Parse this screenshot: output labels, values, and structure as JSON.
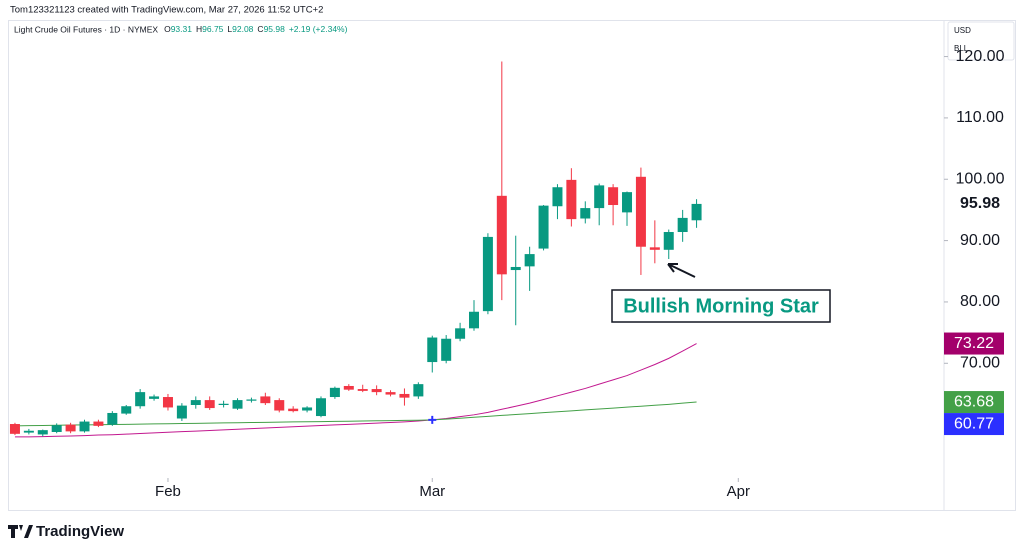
{
  "header": {
    "attribution": "Tom123321123 created with TradingView.com, Mar 27, 2026 11:52 UTC+2",
    "scale_menu": [
      "USD",
      "BLL"
    ]
  },
  "chart_data": {
    "type": "candlestick",
    "title": "Light Crude Oil Futures · 1D · NYMEX",
    "ohlc_letters": [
      "O",
      "H",
      "L",
      "C"
    ],
    "change": "+2.19 (+2.34%)",
    "up_color": "#089981",
    "down_color": "#f23645",
    "open": [
      60.1,
      58.7,
      58.4,
      58.8,
      60.0,
      58.9,
      60.5,
      60.0,
      61.8,
      63.0,
      64.2,
      64.5,
      61.0,
      63.2,
      64.0,
      63.2,
      62.6,
      63.9,
      64.6,
      64.0,
      62.6,
      62.3,
      61.4,
      64.5,
      66.3,
      65.8,
      65.8,
      65.3,
      65.0,
      64.6,
      70.2,
      70.4,
      74.0,
      75.7,
      78.5,
      97.3,
      85.2,
      85.8,
      88.7,
      95.6,
      99.9,
      93.6,
      95.3,
      98.7,
      94.6,
      100.4,
      88.9,
      88.5,
      91.4,
      93.31
    ],
    "high": [
      60.3,
      59.3,
      59.2,
      60.2,
      60.3,
      60.8,
      60.8,
      62.2,
      63.2,
      65.8,
      64.9,
      65.0,
      63.5,
      64.6,
      64.6,
      63.9,
      64.3,
      64.4,
      65.2,
      64.3,
      63.0,
      63.0,
      64.6,
      66.2,
      66.6,
      66.5,
      66.4,
      65.6,
      65.9,
      66.9,
      74.5,
      74.6,
      76.6,
      80.3,
      91.2,
      119.2,
      90.8,
      89.0,
      95.8,
      99.2,
      101.8,
      96.4,
      99.3,
      99.2,
      98.0,
      101.9,
      93.3,
      91.8,
      95.0,
      96.75
    ],
    "low": [
      58.3,
      58.4,
      58.1,
      58.6,
      58.6,
      58.7,
      59.6,
      59.8,
      61.6,
      62.6,
      63.9,
      62.3,
      60.6,
      62.6,
      62.4,
      62.8,
      62.4,
      63.6,
      63.2,
      62.0,
      62.0,
      62.0,
      61.2,
      64.2,
      65.5,
      65.3,
      64.8,
      64.6,
      63.1,
      64.2,
      68.5,
      70.0,
      73.6,
      75.3,
      78.0,
      80.3,
      76.2,
      81.8,
      88.4,
      93.5,
      92.3,
      92.8,
      92.5,
      92.5,
      92.4,
      84.4,
      86.3,
      87.0,
      89.8,
      92.08
    ],
    "close": [
      58.5,
      59.0,
      59.1,
      59.9,
      58.9,
      60.5,
      59.8,
      61.9,
      63.0,
      65.3,
      64.6,
      62.8,
      63.1,
      64.0,
      62.7,
      63.4,
      64.0,
      64.1,
      63.5,
      62.3,
      62.2,
      62.8,
      64.3,
      66.0,
      65.7,
      65.5,
      65.3,
      64.9,
      64.4,
      66.6,
      74.2,
      74.0,
      75.7,
      78.4,
      90.6,
      84.5,
      85.7,
      87.8,
      95.7,
      98.7,
      93.5,
      95.3,
      99.0,
      95.8,
      97.9,
      89.0,
      88.5,
      91.4,
      93.7,
      95.98
    ],
    "lines": [
      {
        "color": "#c2188f",
        "label_color": "#a3006b",
        "values": [
          58.0,
          58.0,
          58.05,
          58.1,
          58.15,
          58.2,
          58.3,
          58.35,
          58.45,
          58.55,
          58.65,
          58.75,
          58.85,
          58.95,
          59.05,
          59.15,
          59.25,
          59.35,
          59.45,
          59.55,
          59.65,
          59.75,
          59.85,
          59.95,
          60.05,
          60.15,
          60.25,
          60.35,
          60.45,
          60.6,
          60.77,
          61.0,
          61.3,
          61.6,
          62.0,
          62.5,
          63.0,
          63.5,
          64.1,
          64.7,
          65.3,
          65.9,
          66.6,
          67.3,
          68.0,
          68.9,
          69.8,
          70.8,
          72.0,
          73.22
        ]
      },
      {
        "color": "#43a047",
        "label_color": "#43a047",
        "values": [
          59.8,
          59.83,
          59.86,
          59.9,
          59.93,
          59.96,
          59.99,
          60.02,
          60.05,
          60.08,
          60.12,
          60.15,
          60.18,
          60.21,
          60.24,
          60.28,
          60.31,
          60.34,
          60.37,
          60.4,
          60.44,
          60.47,
          60.5,
          60.53,
          60.56,
          60.6,
          60.63,
          60.66,
          60.69,
          60.72,
          60.77,
          60.9,
          61.05,
          61.2,
          61.35,
          61.5,
          61.65,
          61.8,
          61.95,
          62.1,
          62.25,
          62.4,
          62.55,
          62.7,
          62.85,
          63.0,
          63.15,
          63.3,
          63.5,
          63.68
        ]
      }
    ],
    "marker": {
      "x": 30,
      "value": 60.77,
      "color": "#2b2fff"
    },
    "annotation": "Bullish Morning Star",
    "xlim": [
      -0.5,
      66.5
    ],
    "xticks": [
      {
        "value": 11,
        "label": "Feb"
      },
      {
        "value": 30,
        "label": "Mar"
      },
      {
        "value": 52,
        "label": "Apr"
      }
    ],
    "ylim": [
      51.3,
      122.7
    ],
    "yticks": [
      {
        "value": 70,
        "label": "70.00"
      },
      {
        "value": 80,
        "label": "80.00"
      },
      {
        "value": 90,
        "label": "90.00"
      },
      {
        "value": 100,
        "label": "100.00"
      },
      {
        "value": 110,
        "label": "110.00"
      },
      {
        "value": 120,
        "label": "120.00"
      }
    ]
  },
  "footer": {
    "logo": "TradingView"
  }
}
